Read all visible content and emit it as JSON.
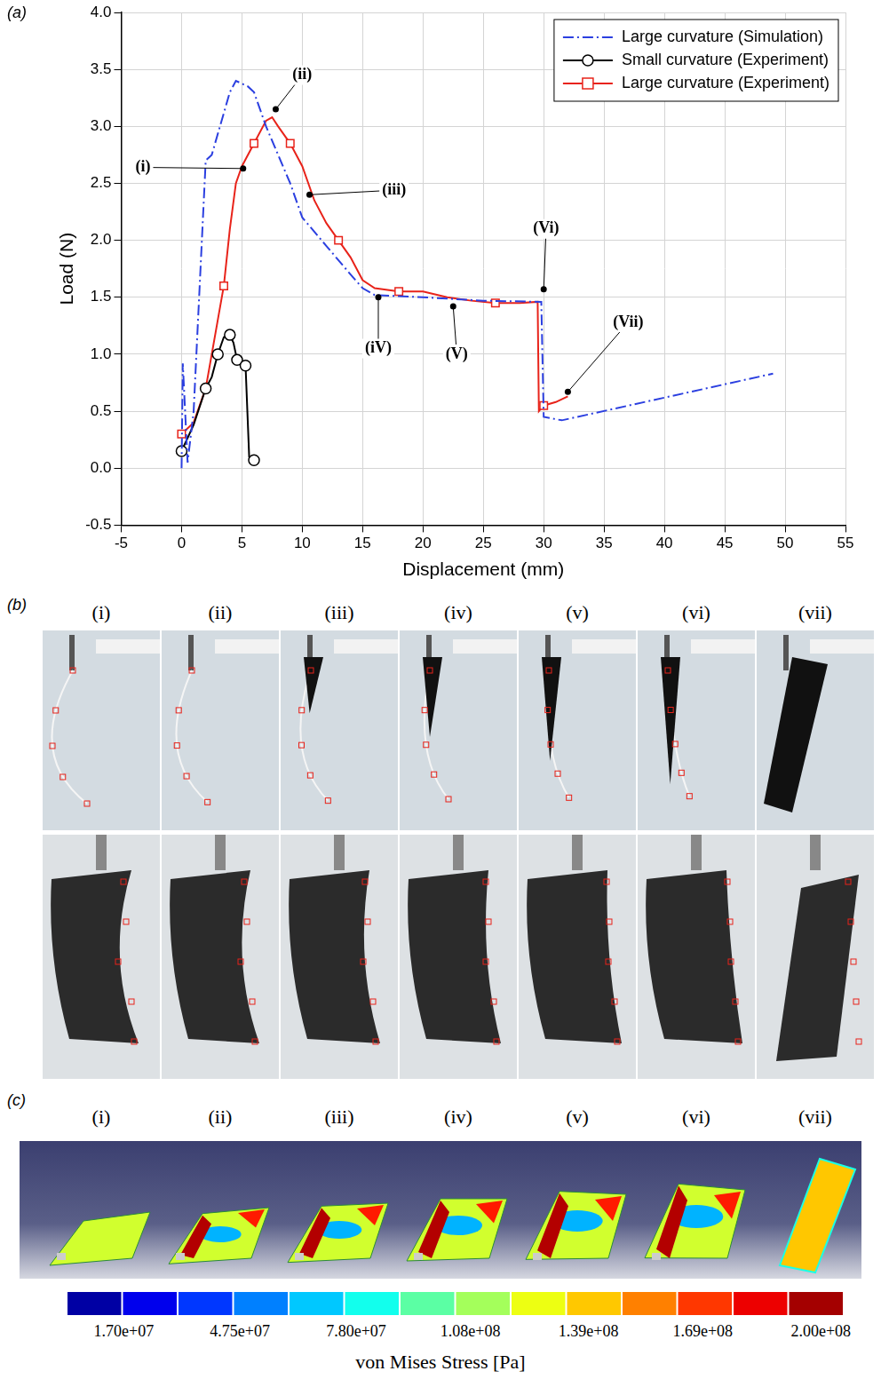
{
  "chart_data": {
    "type": "line",
    "panel_label": "(a)",
    "x_label": "Displacement (mm)",
    "y_label": "Load (N)",
    "xlim": [
      -5,
      55
    ],
    "xticks": [
      -5,
      0,
      5,
      10,
      15,
      20,
      25,
      30,
      35,
      40,
      45,
      50,
      55
    ],
    "ylim": [
      -0.5,
      4.0
    ],
    "yticks": [
      -0.5,
      {
        "value": 0,
        "label": "0.0"
      },
      0.5,
      {
        "value": 1,
        "label": "1.0"
      },
      1.5,
      {
        "value": 2,
        "label": "2.0"
      },
      2.5,
      {
        "value": 3,
        "label": "3.0"
      },
      3.5,
      {
        "value": 4,
        "label": "4.0"
      }
    ],
    "grid": true,
    "legend": "top-right",
    "series": [
      {
        "name": "Large curvature (Simulation)",
        "color": "#2b3fe0",
        "line_style": "dashdot",
        "marker": "none",
        "x": [
          0,
          0.1,
          0.5,
          1.0,
          2.0,
          2.5,
          4.0,
          4.5,
          5.5,
          6.0,
          7.0,
          8.0,
          9.0,
          10.0,
          12.0,
          14.0,
          15.0,
          16.0,
          20.0,
          25.0,
          29.8,
          30.0,
          31.5,
          49.0
        ],
        "values": [
          0.0,
          0.92,
          0.05,
          0.5,
          2.7,
          2.75,
          3.3,
          3.4,
          3.35,
          3.3,
          3.0,
          2.75,
          2.5,
          2.2,
          1.95,
          1.7,
          1.58,
          1.52,
          1.5,
          1.47,
          1.46,
          0.45,
          0.42,
          0.83
        ]
      },
      {
        "name": "Small curvature (Experiment)",
        "color": "#000000",
        "line_style": "solid",
        "marker": "circle",
        "x": [
          0,
          1.0,
          2.0,
          2.5,
          3.0,
          3.5,
          4.0,
          4.3,
          4.6,
          5.0,
          5.3,
          5.6,
          6.0
        ],
        "values": [
          0.15,
          0.38,
          0.7,
          0.8,
          1.0,
          1.15,
          1.17,
          1.1,
          0.95,
          0.9,
          0.9,
          0.1,
          0.07
        ]
      },
      {
        "name": "Large curvature (Experiment)",
        "color": "#e8231a",
        "line_style": "solid",
        "marker": "square",
        "x": [
          0,
          1.0,
          2.0,
          3.0,
          3.5,
          4.0,
          4.5,
          5.0,
          6.0,
          7.0,
          7.5,
          8.0,
          9.0,
          10.0,
          11.0,
          12.0,
          13.0,
          14.0,
          15.0,
          16.0,
          18.0,
          20.0,
          22.0,
          24.0,
          26.0,
          28.0,
          29.5,
          29.6,
          30.0,
          31.0,
          32.0
        ],
        "values": [
          0.3,
          0.4,
          0.7,
          1.3,
          1.6,
          2.1,
          2.5,
          2.65,
          2.85,
          3.05,
          3.08,
          3.0,
          2.85,
          2.65,
          2.35,
          2.15,
          2.0,
          1.85,
          1.65,
          1.58,
          1.55,
          1.55,
          1.5,
          1.47,
          1.45,
          1.45,
          1.46,
          0.5,
          0.55,
          0.58,
          0.63
        ]
      }
    ],
    "annotations": [
      {
        "text": "(i)",
        "x": 5.1,
        "y": 2.63,
        "label_x": -3.2,
        "label_y": 2.64
      },
      {
        "text": "(ii)",
        "x": 7.8,
        "y": 3.15,
        "label_x": 10.0,
        "label_y": 3.45
      },
      {
        "text": "(iii)",
        "x": 10.6,
        "y": 2.4,
        "label_x": 17.6,
        "label_y": 2.44
      },
      {
        "text": "(iV)",
        "x": 16.3,
        "y": 1.5,
        "label_x": 16.3,
        "label_y": 1.05
      },
      {
        "text": "(V)",
        "x": 22.5,
        "y": 1.42,
        "label_x": 22.8,
        "label_y": 1.0
      },
      {
        "text": "(Vi)",
        "x": 30.0,
        "y": 1.57,
        "label_x": 30.2,
        "label_y": 2.1
      },
      {
        "text": "(Vii)",
        "x": 32.0,
        "y": 0.67,
        "label_x": 37.0,
        "label_y": 1.28
      }
    ]
  },
  "photos": {
    "panel_label": "(b)",
    "labels": [
      "(i)",
      "(ii)",
      "(iii)",
      "(iv)",
      "(v)",
      "(vi)",
      "(vii)"
    ]
  },
  "fea": {
    "panel_label": "(c)",
    "labels": [
      "(i)",
      "(ii)",
      "(iii)",
      "(iv)",
      "(v)",
      "(vi)",
      "(vii)"
    ],
    "colorbar": {
      "range": [
        2000000,
        206000000
      ],
      "ticks": [
        {
          "value": 17000000,
          "label": "1.70e+07"
        },
        {
          "value": 47500000,
          "label": "4.75e+07"
        },
        {
          "value": 78000000,
          "label": "7.80e+07"
        },
        {
          "value": 108000000,
          "label": "1.08e+08"
        },
        {
          "value": 139000000,
          "label": "1.39e+08"
        },
        {
          "value": 169000000,
          "label": "1.69e+08"
        },
        {
          "value": 200000000,
          "label": "2.00e+08"
        }
      ],
      "title": "von Mises Stress [Pa]"
    }
  }
}
